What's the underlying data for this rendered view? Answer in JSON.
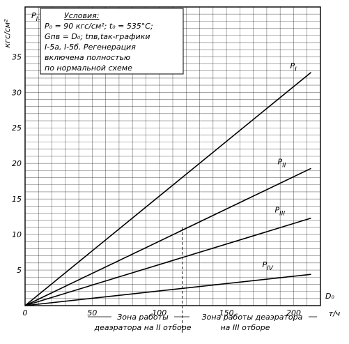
{
  "chart_data": {
    "type": "line",
    "ylabel_units": "кгс/см²",
    "ylabel": "P_{I-IV}",
    "xlabel": "D₀",
    "xlabel_units": "т/ч",
    "xlim": [
      0,
      220
    ],
    "ylim": [
      0,
      42
    ],
    "x_ticks": [
      0,
      50,
      100,
      150,
      200
    ],
    "y_ticks": [
      5,
      10,
      15,
      20,
      25,
      30,
      35
    ],
    "annotation": [
      "Условия:",
      "P₀ = 90 кгс/см²; t₀ = 535°C;",
      "Gпв = D₀; tпв,tак-графики",
      "I-5а, I-5б. Регенерация",
      "включена полностью",
      "по нормальной схеме"
    ],
    "zone_boundary_x": 117,
    "zones": [
      {
        "line1": "Зона работы",
        "line2": "деаэратора на II отборе"
      },
      {
        "line1": "Зона работы деаэратора",
        "line2": "на III отборе"
      }
    ],
    "series": [
      {
        "name": "P_I",
        "x": [
          0,
          213
        ],
        "y": [
          0,
          32.8
        ]
      },
      {
        "name": "P_II",
        "x": [
          0,
          213
        ],
        "y": [
          0,
          19.3
        ]
      },
      {
        "name": "P_III",
        "x": [
          0,
          213
        ],
        "y": [
          0,
          12.3
        ]
      },
      {
        "name": "P_IV",
        "x": [
          0,
          213
        ],
        "y": [
          0,
          4.4
        ]
      }
    ],
    "grid": true
  }
}
